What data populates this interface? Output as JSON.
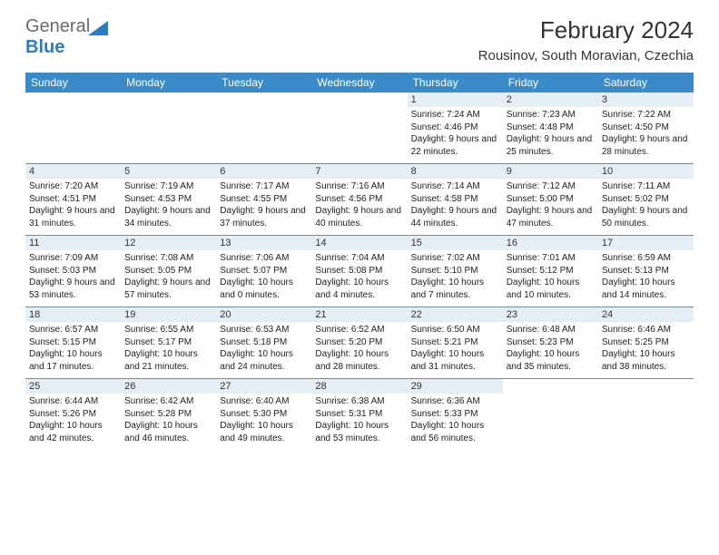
{
  "logo": {
    "gray": "General",
    "blue": "Blue"
  },
  "title": "February 2024",
  "location": "Rousinov, South Moravian, Czechia",
  "colors": {
    "header_bg": "#3b8bc9",
    "header_text": "#ffffff",
    "daynum_bg": "#e6eef5",
    "border": "#7a8a99",
    "logo_gray": "#6b6b6b",
    "logo_blue": "#2f7bbf"
  },
  "dow": [
    "Sunday",
    "Monday",
    "Tuesday",
    "Wednesday",
    "Thursday",
    "Friday",
    "Saturday"
  ],
  "weeks": [
    [
      null,
      null,
      null,
      null,
      {
        "n": "1",
        "sr": "7:24 AM",
        "ss": "4:46 PM",
        "dl": "9 hours and 22 minutes."
      },
      {
        "n": "2",
        "sr": "7:23 AM",
        "ss": "4:48 PM",
        "dl": "9 hours and 25 minutes."
      },
      {
        "n": "3",
        "sr": "7:22 AM",
        "ss": "4:50 PM",
        "dl": "9 hours and 28 minutes."
      }
    ],
    [
      {
        "n": "4",
        "sr": "7:20 AM",
        "ss": "4:51 PM",
        "dl": "9 hours and 31 minutes."
      },
      {
        "n": "5",
        "sr": "7:19 AM",
        "ss": "4:53 PM",
        "dl": "9 hours and 34 minutes."
      },
      {
        "n": "6",
        "sr": "7:17 AM",
        "ss": "4:55 PM",
        "dl": "9 hours and 37 minutes."
      },
      {
        "n": "7",
        "sr": "7:16 AM",
        "ss": "4:56 PM",
        "dl": "9 hours and 40 minutes."
      },
      {
        "n": "8",
        "sr": "7:14 AM",
        "ss": "4:58 PM",
        "dl": "9 hours and 44 minutes."
      },
      {
        "n": "9",
        "sr": "7:12 AM",
        "ss": "5:00 PM",
        "dl": "9 hours and 47 minutes."
      },
      {
        "n": "10",
        "sr": "7:11 AM",
        "ss": "5:02 PM",
        "dl": "9 hours and 50 minutes."
      }
    ],
    [
      {
        "n": "11",
        "sr": "7:09 AM",
        "ss": "5:03 PM",
        "dl": "9 hours and 53 minutes."
      },
      {
        "n": "12",
        "sr": "7:08 AM",
        "ss": "5:05 PM",
        "dl": "9 hours and 57 minutes."
      },
      {
        "n": "13",
        "sr": "7:06 AM",
        "ss": "5:07 PM",
        "dl": "10 hours and 0 minutes."
      },
      {
        "n": "14",
        "sr": "7:04 AM",
        "ss": "5:08 PM",
        "dl": "10 hours and 4 minutes."
      },
      {
        "n": "15",
        "sr": "7:02 AM",
        "ss": "5:10 PM",
        "dl": "10 hours and 7 minutes."
      },
      {
        "n": "16",
        "sr": "7:01 AM",
        "ss": "5:12 PM",
        "dl": "10 hours and 10 minutes."
      },
      {
        "n": "17",
        "sr": "6:59 AM",
        "ss": "5:13 PM",
        "dl": "10 hours and 14 minutes."
      }
    ],
    [
      {
        "n": "18",
        "sr": "6:57 AM",
        "ss": "5:15 PM",
        "dl": "10 hours and 17 minutes."
      },
      {
        "n": "19",
        "sr": "6:55 AM",
        "ss": "5:17 PM",
        "dl": "10 hours and 21 minutes."
      },
      {
        "n": "20",
        "sr": "6:53 AM",
        "ss": "5:18 PM",
        "dl": "10 hours and 24 minutes."
      },
      {
        "n": "21",
        "sr": "6:52 AM",
        "ss": "5:20 PM",
        "dl": "10 hours and 28 minutes."
      },
      {
        "n": "22",
        "sr": "6:50 AM",
        "ss": "5:21 PM",
        "dl": "10 hours and 31 minutes."
      },
      {
        "n": "23",
        "sr": "6:48 AM",
        "ss": "5:23 PM",
        "dl": "10 hours and 35 minutes."
      },
      {
        "n": "24",
        "sr": "6:46 AM",
        "ss": "5:25 PM",
        "dl": "10 hours and 38 minutes."
      }
    ],
    [
      {
        "n": "25",
        "sr": "6:44 AM",
        "ss": "5:26 PM",
        "dl": "10 hours and 42 minutes."
      },
      {
        "n": "26",
        "sr": "6:42 AM",
        "ss": "5:28 PM",
        "dl": "10 hours and 46 minutes."
      },
      {
        "n": "27",
        "sr": "6:40 AM",
        "ss": "5:30 PM",
        "dl": "10 hours and 49 minutes."
      },
      {
        "n": "28",
        "sr": "6:38 AM",
        "ss": "5:31 PM",
        "dl": "10 hours and 53 minutes."
      },
      {
        "n": "29",
        "sr": "6:36 AM",
        "ss": "5:33 PM",
        "dl": "10 hours and 56 minutes."
      },
      null,
      null
    ]
  ],
  "labels": {
    "sunrise": "Sunrise: ",
    "sunset": "Sunset: ",
    "daylight": "Daylight: "
  }
}
